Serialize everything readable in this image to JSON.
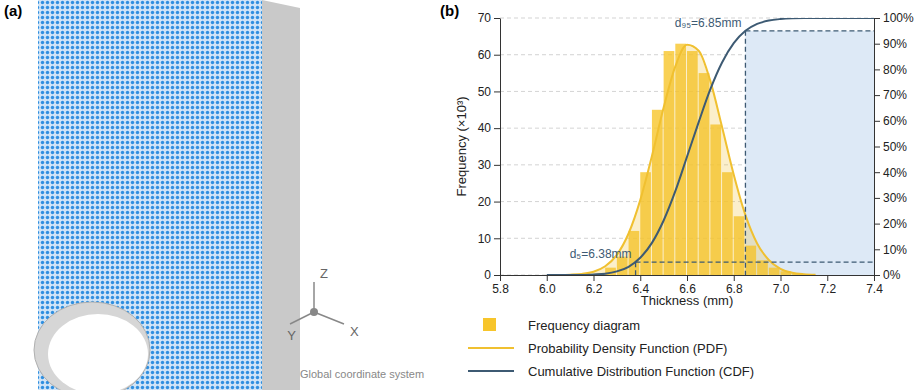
{
  "figure": {
    "panels": [
      "(a)",
      "(b)"
    ],
    "coordinate_axes": [
      "Z",
      "Y",
      "X"
    ],
    "coordinate_caption": "Global coordinate system"
  },
  "chart_data": {
    "type": "histogram",
    "x_label": "Thickness (mm)",
    "y_label": "Frequency (×10³)",
    "xlim": [
      5.8,
      7.4
    ],
    "xticks": [
      5.8,
      {
        "value": 6,
        "label": "6.0"
      },
      6.2,
      6.4,
      6.6,
      6.8,
      {
        "value": 7,
        "label": "7.0"
      },
      7.2,
      7.4
    ],
    "ylim": [
      0,
      70
    ],
    "yticks": [
      0,
      10,
      20,
      30,
      40,
      50,
      60,
      70
    ],
    "y2lim": [
      0,
      100
    ],
    "y2ticks": [
      {
        "value": 0,
        "label": "0%"
      },
      {
        "value": 10,
        "label": "10%"
      },
      {
        "value": 20,
        "label": "20%"
      },
      {
        "value": 30,
        "label": "30%"
      },
      {
        "value": 40,
        "label": "40%"
      },
      {
        "value": 50,
        "label": "50%"
      },
      {
        "value": 60,
        "label": "60%"
      },
      {
        "value": 70,
        "label": "70%"
      },
      {
        "value": 80,
        "label": "80%"
      },
      {
        "value": 90,
        "label": "90%"
      },
      {
        "value": 100,
        "label": "100%"
      }
    ],
    "grid": true,
    "legend": "bottom",
    "bins": [
      6.25,
      6.3,
      6.35,
      6.4,
      6.45,
      6.5,
      6.55,
      6.6,
      6.65,
      6.7,
      6.75,
      6.8,
      6.85,
      6.9,
      6.95,
      7.0,
      7.05,
      7.1
    ],
    "series": [
      {
        "name": "Frequency diagram",
        "type": "bar",
        "color": "#f7c52b",
        "values": [
          2,
          5,
          12,
          28,
          45,
          61,
          63,
          61,
          55,
          41,
          28,
          16,
          8,
          4,
          2,
          1,
          0.5
        ]
      },
      {
        "name": "Probability Density Function (PDF)",
        "type": "area",
        "color": "#f0c030",
        "x": [
          6.05,
          6.1,
          6.15,
          6.2,
          6.25,
          6.3,
          6.35,
          6.4,
          6.45,
          6.5,
          6.55,
          6.6,
          6.65,
          6.7,
          6.75,
          6.8,
          6.85,
          6.9,
          6.95,
          7.0,
          7.05,
          7.1,
          7.15
        ],
        "values": [
          0.03,
          0.1,
          0.3,
          0.9,
          2.4,
          5.5,
          11.3,
          20.4,
          32.4,
          45.6,
          56.8,
          62.7,
          61.1,
          52.8,
          40.3,
          27.3,
          16.3,
          8.6,
          4.1,
          1.7,
          0.6,
          0.2,
          0.05
        ]
      },
      {
        "name": "Cumulative Distribution Function (CDF)",
        "type": "line",
        "color": "#3d5a73",
        "axis": "y2",
        "x": [
          6.0,
          6.05,
          6.1,
          6.15,
          6.2,
          6.25,
          6.3,
          6.35,
          6.4,
          6.45,
          6.5,
          6.55,
          6.6,
          6.65,
          6.7,
          6.75,
          6.8,
          6.85,
          6.9,
          6.95,
          7.0,
          7.05,
          7.1,
          7.15,
          7.2,
          7.25,
          7.3,
          7.35,
          7.4
        ],
        "values": [
          0,
          0,
          0,
          0,
          0.2,
          0.5,
          1.4,
          3.2,
          6.7,
          12.5,
          21.2,
          32.6,
          46.0,
          59.5,
          72.3,
          82.7,
          90.2,
          95.0,
          97.7,
          99.0,
          99.6,
          99.9,
          100,
          100,
          100,
          100,
          100,
          100,
          100
        ]
      }
    ],
    "annotations": [
      {
        "text": "d₅=6.38mm",
        "x": 6.38,
        "y": 5,
        "axis": "y2"
      },
      {
        "text": "d₉₅=6.85mm",
        "x": 6.85,
        "y": 95,
        "axis": "y2"
      }
    ]
  }
}
